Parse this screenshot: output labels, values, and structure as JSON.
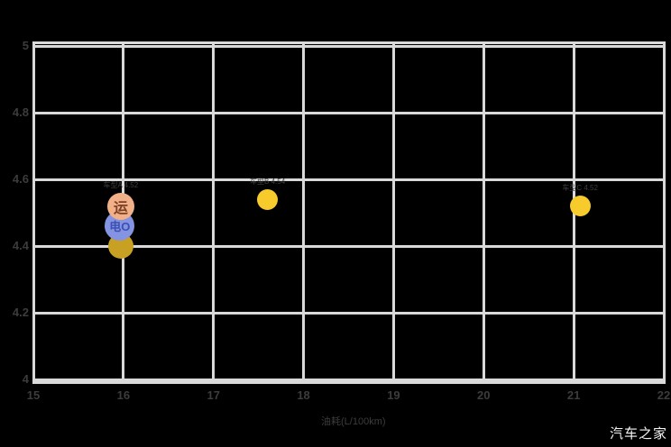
{
  "watermark": "汽车之家",
  "colors": {
    "background": "#000000",
    "grid": "#d9d9d9",
    "tick_text": "#3c3c3c",
    "point_label_text": "#3f3f3f",
    "watermark_text": "#f5f5f5",
    "yellow_dot": "#f6cb2b",
    "dark_gold_dot": "#c9a122",
    "salmon_marker": "#f2b089",
    "salmon_glyph": "#7c4024",
    "blue_marker": "#8494e2",
    "blue_glyph": "#3c4fb2"
  },
  "chart_data": {
    "type": "scatter",
    "title": "",
    "xlabel": "油耗(L/100km)",
    "ylabel": "",
    "xlim": [
      15,
      22
    ],
    "ylim": [
      4,
      5
    ],
    "grid": true,
    "x_ticks": [
      "15",
      "16",
      "17",
      "18",
      "19",
      "20",
      "21",
      "22"
    ],
    "x_tick_values": [
      15,
      16,
      17,
      18,
      19,
      20,
      21,
      22
    ],
    "y_ticks": [
      "5",
      "4.8",
      "4.6",
      "4.4",
      "4.2",
      "4"
    ],
    "y_tick_values": [
      5,
      4.8,
      4.6,
      4.4,
      4.2,
      4
    ],
    "points": [
      {
        "name": "dark-gold-dot",
        "x": 15.97,
        "y": 4.4,
        "size": 28,
        "color": "#c9a122",
        "glyph": "",
        "glyph_color": "",
        "glyph_size": 0,
        "label": ""
      },
      {
        "name": "blue-logo-dot",
        "x": 15.96,
        "y": 4.46,
        "size": 33,
        "color": "#8494e2",
        "glyph": "电O",
        "glyph_color": "#3c4fb2",
        "glyph_size": 13,
        "label": ""
      },
      {
        "name": "salmon-logo-dot",
        "x": 15.97,
        "y": 4.52,
        "size": 30,
        "color": "#f2b089",
        "glyph": "运",
        "glyph_color": "#7c4024",
        "glyph_size": 16,
        "label": "车型A 4.52"
      },
      {
        "name": "yellow-dot",
        "x": 17.6,
        "y": 4.54,
        "size": 23,
        "color": "#f6cb2b",
        "glyph": "",
        "glyph_color": "",
        "glyph_size": 0,
        "label": "车型B 4.54"
      },
      {
        "name": "yellow-dot",
        "x": 21.07,
        "y": 4.52,
        "size": 23,
        "color": "#f6cb2b",
        "glyph": "",
        "glyph_color": "",
        "glyph_size": 0,
        "label": "车型C 4.52"
      }
    ]
  }
}
